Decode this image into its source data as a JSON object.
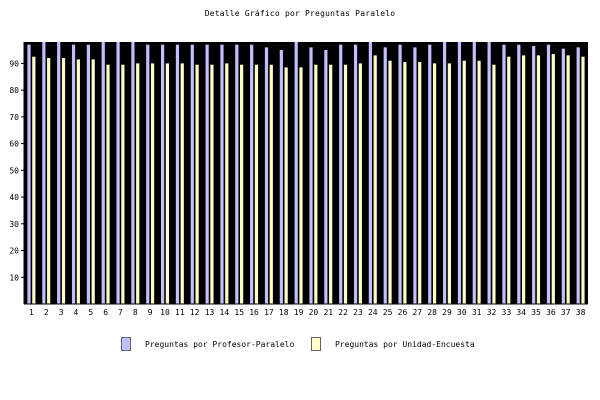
{
  "chart_data": {
    "type": "bar",
    "title": "Detalle Gráfico por Preguntas Paralelo",
    "xlabel": "",
    "ylabel": "",
    "ylim": [
      0,
      98
    ],
    "yticks": [
      10,
      20,
      30,
      40,
      50,
      60,
      70,
      80,
      90
    ],
    "categories": [
      "1",
      "2",
      "3",
      "4",
      "5",
      "6",
      "7",
      "8",
      "9",
      "10",
      "11",
      "12",
      "13",
      "14",
      "15",
      "16",
      "17",
      "18",
      "19",
      "20",
      "21",
      "22",
      "23",
      "24",
      "25",
      "26",
      "27",
      "28",
      "29",
      "30",
      "31",
      "32",
      "33",
      "34",
      "35",
      "36",
      "37",
      "38"
    ],
    "series": [
      {
        "name": "Preguntas por Profesor-Paralelo",
        "color": "#c0c0ff",
        "values": [
          97,
          98,
          98,
          97,
          97,
          98,
          98,
          98,
          97,
          97,
          97,
          97,
          97,
          97,
          97,
          97,
          96,
          95,
          98,
          96,
          95,
          97,
          97,
          98,
          96,
          97,
          96,
          97,
          98,
          98,
          98,
          98,
          97,
          97,
          96.5,
          97,
          95.5,
          96
        ]
      },
      {
        "name": "Preguntas por Unidad-Encuesta",
        "color": "#ffffc8",
        "values": [
          92.5,
          92,
          92,
          91.5,
          91.5,
          89.5,
          89.5,
          90,
          90,
          90,
          90,
          89.5,
          89.5,
          90,
          89.5,
          89.5,
          89.5,
          88.5,
          88.5,
          89.5,
          89.5,
          89.5,
          90,
          93,
          91,
          90.5,
          90.5,
          90,
          90,
          91,
          91,
          89.5,
          92.5,
          93,
          93,
          93.5,
          93,
          92.5
        ]
      }
    ],
    "background": "#000000",
    "grid": false,
    "legend_position": "bottom"
  }
}
